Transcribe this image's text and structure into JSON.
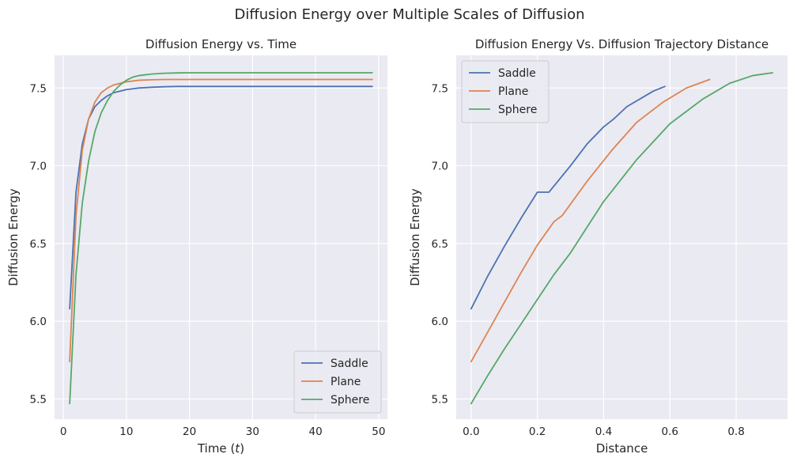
{
  "figure": {
    "suptitle": "Diffusion Energy over Multiple Scales of Diffusion",
    "colors": {
      "Saddle": "#4c72b0",
      "Plane": "#dd8452",
      "Sphere": "#55a868",
      "axes_bg": "#eaeaf2",
      "grid": "#ffffff"
    }
  },
  "chart_data": [
    {
      "type": "line",
      "title": "Diffusion Energy vs. Time",
      "xlabel": "Time ",
      "xlabel_italic": "t",
      "ylabel": "Diffusion Energy",
      "xlim": [
        -1.4,
        51.4
      ],
      "ylim": [
        5.37,
        7.71
      ],
      "xticks": [
        0,
        10,
        20,
        30,
        40,
        50
      ],
      "yticks": [
        5.5,
        6.0,
        6.5,
        7.0,
        7.5
      ],
      "xtick_labels": [
        "0",
        "10",
        "20",
        "30",
        "40",
        "50"
      ],
      "ytick_labels": [
        "5.5",
        "6.0",
        "6.5",
        "7.0",
        "7.5"
      ],
      "grid": true,
      "legend_position": "lower-right",
      "series": [
        {
          "name": "Saddle",
          "x": [
            1,
            2,
            3,
            4,
            5,
            6,
            7,
            8,
            9,
            10,
            12,
            14,
            16,
            18,
            20,
            25,
            30,
            35,
            40,
            45,
            49
          ],
          "y": [
            6.08,
            6.83,
            7.14,
            7.3,
            7.38,
            7.42,
            7.45,
            7.47,
            7.48,
            7.49,
            7.5,
            7.505,
            7.508,
            7.51,
            7.51,
            7.51,
            7.51,
            7.51,
            7.51,
            7.51,
            7.51
          ]
        },
        {
          "name": "Plane",
          "x": [
            1,
            2,
            3,
            4,
            5,
            6,
            7,
            8,
            9,
            10,
            12,
            14,
            16,
            18,
            20,
            25,
            30,
            35,
            40,
            45,
            49
          ],
          "y": [
            5.74,
            6.68,
            7.1,
            7.3,
            7.41,
            7.47,
            7.5,
            7.52,
            7.53,
            7.54,
            7.55,
            7.553,
            7.555,
            7.555,
            7.555,
            7.555,
            7.555,
            7.555,
            7.555,
            7.555,
            7.555
          ]
        },
        {
          "name": "Sphere",
          "x": [
            1,
            2,
            3,
            4,
            5,
            6,
            7,
            8,
            9,
            10,
            11,
            12,
            13,
            14,
            16,
            18,
            20,
            25,
            30,
            35,
            40,
            45,
            49
          ],
          "y": [
            5.47,
            6.3,
            6.76,
            7.03,
            7.22,
            7.34,
            7.42,
            7.48,
            7.52,
            7.55,
            7.57,
            7.58,
            7.585,
            7.59,
            7.595,
            7.597,
            7.598,
            7.598,
            7.598,
            7.598,
            7.598,
            7.598,
            7.598
          ]
        }
      ]
    },
    {
      "type": "line",
      "title": "Diffusion Energy Vs. Diffusion Trajectory Distance",
      "xlabel": "Distance",
      "ylabel": "Diffusion Energy",
      "xlim": [
        -0.045,
        0.955
      ],
      "ylim": [
        5.37,
        7.71
      ],
      "xticks": [
        0.0,
        0.2,
        0.4,
        0.6,
        0.8
      ],
      "yticks": [
        5.5,
        6.0,
        6.5,
        7.0,
        7.5
      ],
      "xtick_labels": [
        "0.0",
        "0.2",
        "0.4",
        "0.6",
        "0.8"
      ],
      "ytick_labels": [
        "5.5",
        "6.0",
        "6.5",
        "7.0",
        "7.5"
      ],
      "grid": true,
      "legend_position": "upper-left",
      "series": [
        {
          "name": "Saddle",
          "x": [
            0.0,
            0.05,
            0.1,
            0.15,
            0.2,
            0.235,
            0.3,
            0.35,
            0.4,
            0.43,
            0.47,
            0.51,
            0.55,
            0.585
          ],
          "y": [
            6.08,
            6.29,
            6.48,
            6.66,
            6.83,
            6.83,
            7.0,
            7.14,
            7.25,
            7.3,
            7.38,
            7.43,
            7.48,
            7.51
          ]
        },
        {
          "name": "Plane",
          "x": [
            0.0,
            0.05,
            0.1,
            0.15,
            0.2,
            0.25,
            0.275,
            0.35,
            0.425,
            0.5,
            0.58,
            0.65,
            0.72
          ],
          "y": [
            5.74,
            5.93,
            6.12,
            6.31,
            6.49,
            6.64,
            6.68,
            6.9,
            7.1,
            7.28,
            7.41,
            7.5,
            7.555
          ]
        },
        {
          "name": "Sphere",
          "x": [
            0.0,
            0.05,
            0.1,
            0.15,
            0.2,
            0.25,
            0.3,
            0.4,
            0.5,
            0.6,
            0.7,
            0.78,
            0.85,
            0.91
          ],
          "y": [
            5.47,
            5.65,
            5.82,
            5.98,
            6.14,
            6.3,
            6.44,
            6.77,
            7.04,
            7.27,
            7.43,
            7.53,
            7.58,
            7.598
          ]
        }
      ]
    }
  ]
}
